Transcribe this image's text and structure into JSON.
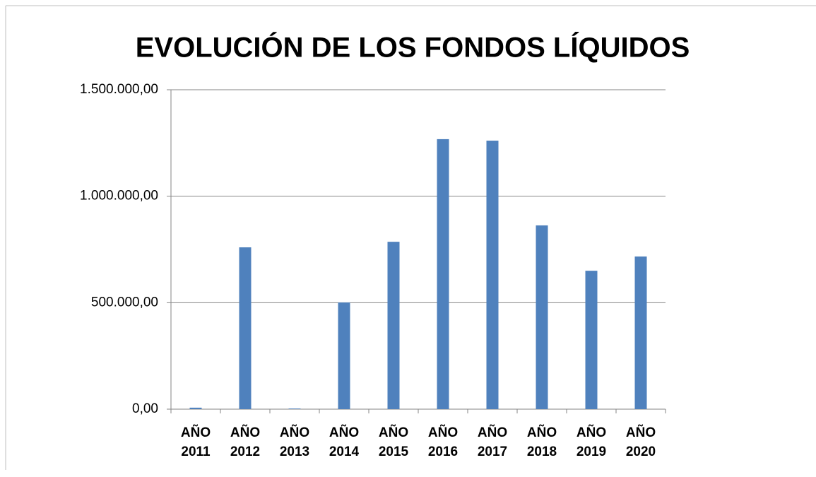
{
  "chart_data": {
    "type": "bar",
    "title": "EVOLUCIÓN DE LOS FONDOS LÍQUIDOS",
    "categories": [
      "AÑO 2011",
      "AÑO 2012",
      "AÑO 2013",
      "AÑO 2014",
      "AÑO 2015",
      "AÑO 2016",
      "AÑO 2017",
      "AÑO 2018",
      "AÑO 2019",
      "AÑO 2020"
    ],
    "values": [
      7000,
      760000,
      3000,
      501000,
      786000,
      1268000,
      1261000,
      863000,
      650000,
      717000
    ],
    "color": "#4f81bd",
    "ylim": [
      0,
      1500000
    ],
    "yticks": [
      {
        "value": 0,
        "label": "0,00"
      },
      {
        "value": 500000,
        "label": "500.000,00"
      },
      {
        "value": 1000000,
        "label": "1.000.000,00"
      },
      {
        "value": 1500000,
        "label": "1.500.000,00"
      }
    ],
    "grid": true
  }
}
